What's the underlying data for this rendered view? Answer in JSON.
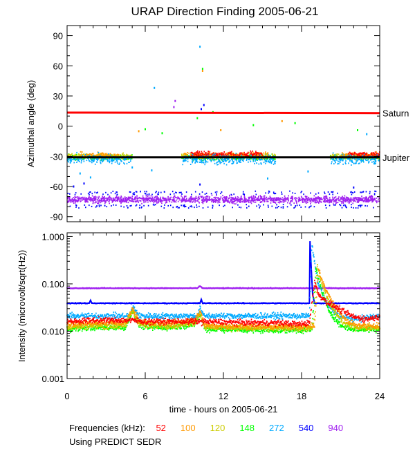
{
  "chart_data": [
    {
      "type": "scatter",
      "title": "URAP Direction Finding  2005-06-21",
      "ylabel": "Azimuthal angle (deg)",
      "xlim": [
        0,
        24
      ],
      "ylim": [
        -95,
        100
      ],
      "yticks": [
        90,
        60,
        30,
        0,
        -30,
        -60,
        -90
      ],
      "reference_lines": [
        {
          "name": "Saturn",
          "color": "#ff0000",
          "y_start": 13.5,
          "y_end": 13
        },
        {
          "name": "Jupiter",
          "color": "#000000",
          "y_start": -31,
          "y_end": -31
        }
      ],
      "series": [
        {
          "name": "940",
          "color": "#a020f0",
          "description": "dense band",
          "center": -73,
          "spread": 5,
          "x_range": [
            0,
            24
          ]
        },
        {
          "name": "540",
          "color": "#0000ff",
          "description": "band edges",
          "center": -73,
          "spread": 7,
          "x_range": [
            0,
            24
          ]
        },
        {
          "name": "148",
          "color": "#00ff00",
          "center": -31,
          "spread": 4,
          "segments": [
            [
              0,
              5
            ],
            [
              8.8,
              16
            ],
            [
              20.2,
              24
            ]
          ]
        },
        {
          "name": "120",
          "color": "#cccc00",
          "center": -30,
          "spread": 4,
          "segments": [
            [
              0,
              5
            ],
            [
              8.8,
              16
            ],
            [
              20.2,
              24
            ]
          ]
        },
        {
          "name": "100",
          "color": "#ff9900",
          "center": -29,
          "spread": 4,
          "segments": [
            [
              1,
              4
            ],
            [
              9,
              15.5
            ],
            [
              21,
              24
            ]
          ]
        },
        {
          "name": "52",
          "color": "#ff0000",
          "center": -28,
          "spread": 4,
          "segments": [
            [
              9.5,
              15
            ],
            [
              21.5,
              24
            ]
          ]
        },
        {
          "name": "272",
          "color": "#00aaff",
          "center": -33,
          "spread": 7,
          "segments": [
            [
              0,
              5
            ],
            [
              8.8,
              16
            ],
            [
              20.2,
              24
            ]
          ]
        }
      ],
      "outliers": [
        {
          "x": 10.2,
          "y": 79,
          "color": "#00aaff"
        },
        {
          "x": 10.4,
          "y": 57,
          "color": "#00ff00"
        },
        {
          "x": 10.4,
          "y": 55,
          "color": "#ff9900"
        },
        {
          "x": 6.7,
          "y": 38,
          "color": "#00aaff"
        },
        {
          "x": 8.3,
          "y": 25,
          "color": "#a020f0"
        },
        {
          "x": 8.2,
          "y": 19,
          "color": "#a020f0"
        },
        {
          "x": 10.5,
          "y": 21,
          "color": "#0000ff"
        },
        {
          "x": 10.3,
          "y": 17,
          "color": "#0000ff"
        },
        {
          "x": 11.2,
          "y": 14,
          "color": "#00ff00"
        },
        {
          "x": 10,
          "y": 8,
          "color": "#00ff00"
        },
        {
          "x": 5.5,
          "y": -5,
          "color": "#ff9900"
        },
        {
          "x": 6,
          "y": -3,
          "color": "#00ff00"
        },
        {
          "x": 7.3,
          "y": -7,
          "color": "#00ff00"
        },
        {
          "x": 11.8,
          "y": -4,
          "color": "#ff9900"
        },
        {
          "x": 14.3,
          "y": 1,
          "color": "#00ff00"
        },
        {
          "x": 16.5,
          "y": 5,
          "color": "#ff9900"
        },
        {
          "x": 17.5,
          "y": 3,
          "color": "#00ff00"
        },
        {
          "x": 22.3,
          "y": -4,
          "color": "#00ff00"
        },
        {
          "x": 23,
          "y": -8,
          "color": "#00aaff"
        },
        {
          "x": 1,
          "y": -47,
          "color": "#00aaff"
        },
        {
          "x": 1.8,
          "y": -51,
          "color": "#00aaff"
        },
        {
          "x": 5,
          "y": -41,
          "color": "#00aaff"
        },
        {
          "x": 6.5,
          "y": -44,
          "color": "#00aaff"
        },
        {
          "x": 15.4,
          "y": -52,
          "color": "#00aaff"
        },
        {
          "x": 18.5,
          "y": -45,
          "color": "#00aaff"
        },
        {
          "x": 0.5,
          "y": -60,
          "color": "#0000ff"
        },
        {
          "x": 1.3,
          "y": -57,
          "color": "#0000ff"
        },
        {
          "x": 10.2,
          "y": -58,
          "color": "#0000ff"
        },
        {
          "x": 22,
          "y": -61,
          "color": "#0000ff"
        }
      ]
    },
    {
      "type": "line",
      "ylabel": "Intensity (microvolt/sqrt(Hz))",
      "xlabel": "time - hours on 2005-06-21",
      "xlim": [
        0,
        24
      ],
      "ylim": [
        0.001,
        1.2
      ],
      "yscale": "log",
      "yticks": [
        {
          "value": 1.0,
          "label": "1.000"
        },
        {
          "value": 0.1,
          "label": "0.100"
        },
        {
          "value": 0.01,
          "label": "0.010"
        },
        {
          "value": 0.001,
          "label": "0.001"
        }
      ],
      "xticks": [
        0,
        6,
        12,
        18,
        24
      ],
      "series": [
        {
          "name": "940",
          "color": "#a020f0",
          "x": [
            0,
            10,
            10.2,
            10.4,
            24
          ],
          "y": [
            0.081,
            0.081,
            0.09,
            0.081,
            0.081
          ]
        },
        {
          "name": "540",
          "color": "#0000ff",
          "x": [
            0,
            1.7,
            1.8,
            1.9,
            10.2,
            10.3,
            10.4,
            18.6,
            18.65,
            18.75,
            18.85,
            19,
            24
          ],
          "y": [
            0.039,
            0.039,
            0.045,
            0.039,
            0.039,
            0.047,
            0.039,
            0.039,
            0.8,
            0.2,
            0.06,
            0.039,
            0.039
          ]
        },
        {
          "name": "272",
          "color": "#00aaff",
          "x": [
            0,
            4.8,
            5.1,
            5.5,
            10,
            10.2,
            10.5,
            18.6,
            18.8,
            19.2,
            20,
            21,
            22,
            24
          ],
          "y": [
            0.021,
            0.021,
            0.033,
            0.021,
            0.021,
            0.03,
            0.021,
            0.021,
            0.7,
            0.12,
            0.035,
            0.02,
            0.018,
            0.021
          ]
        },
        {
          "name": "148",
          "color": "#00ff00",
          "x": [
            0,
            2,
            4.5,
            5,
            5.5,
            6,
            8,
            9.8,
            10.2,
            10.6,
            12,
            14,
            16,
            18,
            18.8,
            19.1,
            19.5,
            20,
            21,
            22,
            23,
            24
          ],
          "y": [
            0.011,
            0.012,
            0.012,
            0.026,
            0.014,
            0.012,
            0.012,
            0.014,
            0.022,
            0.011,
            0.011,
            0.0105,
            0.0105,
            0.0105,
            0.0108,
            0.22,
            0.08,
            0.03,
            0.013,
            0.011,
            0.011,
            0.011
          ]
        },
        {
          "name": "120",
          "color": "#cccc00",
          "x": [
            0,
            2,
            4.5,
            5,
            5.5,
            6,
            8,
            9.8,
            10.2,
            10.6,
            12,
            14,
            16,
            18,
            18.9,
            19.2,
            19.6,
            20.2,
            21.2,
            22.2,
            23,
            24
          ],
          "y": [
            0.012,
            0.013,
            0.013,
            0.028,
            0.015,
            0.013,
            0.013,
            0.015,
            0.024,
            0.012,
            0.012,
            0.0115,
            0.0115,
            0.0115,
            0.0118,
            0.25,
            0.09,
            0.035,
            0.015,
            0.012,
            0.012,
            0.012
          ]
        },
        {
          "name": "100",
          "color": "#ff9900",
          "x": [
            0,
            2,
            4.5,
            5,
            5.5,
            6,
            8,
            9.8,
            10.2,
            10.6,
            12,
            14,
            16,
            18,
            19,
            19.3,
            19.8,
            20.5,
            21.5,
            22.5,
            23,
            24
          ],
          "y": [
            0.014,
            0.015,
            0.015,
            0.03,
            0.017,
            0.015,
            0.015,
            0.017,
            0.026,
            0.013,
            0.013,
            0.0125,
            0.0125,
            0.0125,
            0.013,
            0.2,
            0.08,
            0.035,
            0.016,
            0.013,
            0.013,
            0.013
          ]
        },
        {
          "name": "52",
          "color": "#ff0000",
          "x": [
            0,
            2,
            5,
            6,
            10,
            12,
            14,
            16,
            18,
            18.6,
            19,
            19.3,
            20,
            21,
            22,
            23,
            24
          ],
          "y": [
            0.016,
            0.017,
            0.017,
            0.016,
            0.016,
            0.0155,
            0.015,
            0.015,
            0.014,
            0.015,
            0.11,
            0.06,
            0.04,
            0.028,
            0.02,
            0.018,
            0.02
          ]
        }
      ]
    }
  ],
  "legend": {
    "label": "Frequencies (kHz):",
    "items": [
      {
        "value": "52",
        "color": "#ff0000"
      },
      {
        "value": "100",
        "color": "#ff9900"
      },
      {
        "value": "120",
        "color": "#cccc00"
      },
      {
        "value": "148",
        "color": "#00ff00"
      },
      {
        "value": "272",
        "color": "#00aaff"
      },
      {
        "value": "540",
        "color": "#0000ff"
      },
      {
        "value": "940",
        "color": "#a020f0"
      }
    ]
  },
  "source_note": "Using PREDICT SEDR"
}
